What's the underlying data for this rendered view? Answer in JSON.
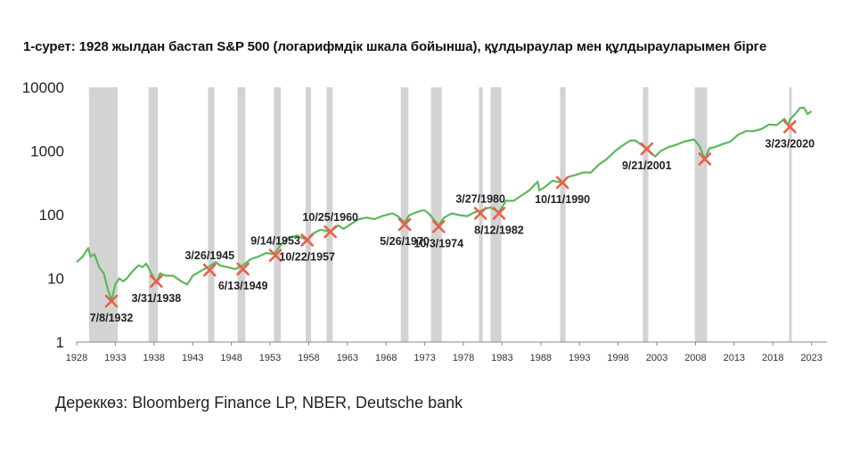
{
  "chart_data": {
    "type": "line",
    "title": "1-сурет: 1928 жылдан бастап S&P 500 (логарифмдік шкала бойынша), құлдыраулар мен құлдырауларымен бірге",
    "source": "Дереккөз: Bloomberg Finance LP, NBER, Deutsche bank",
    "y_scale": "log",
    "ylim": [
      1,
      10000
    ],
    "xlim": [
      1928,
      2025
    ],
    "y_ticks": [
      {
        "value": 1,
        "label": "1"
      },
      {
        "value": 10,
        "label": "10"
      },
      {
        "value": 100,
        "label": "100"
      },
      {
        "value": 1000,
        "label": "1000"
      },
      {
        "value": 10000,
        "label": "10000"
      }
    ],
    "x_ticks": [
      {
        "value": 1928,
        "label": "1928"
      },
      {
        "value": 1933,
        "label": "1933"
      },
      {
        "value": 1938,
        "label": "1938"
      },
      {
        "value": 1943,
        "label": "1943"
      },
      {
        "value": 1948,
        "label": "1948"
      },
      {
        "value": 1953,
        "label": "1953"
      },
      {
        "value": 1958,
        "label": "1958"
      },
      {
        "value": 1963,
        "label": "1963"
      },
      {
        "value": 1968,
        "label": "1968"
      },
      {
        "value": 1973,
        "label": "1973"
      },
      {
        "value": 1978,
        "label": "1978"
      },
      {
        "value": 1983,
        "label": "1983"
      },
      {
        "value": 1988,
        "label": "1988"
      },
      {
        "value": 1993,
        "label": "1993"
      },
      {
        "value": 1998,
        "label": "1998"
      },
      {
        "value": 2003,
        "label": "2003"
      },
      {
        "value": 2008,
        "label": "2008"
      },
      {
        "value": 2013,
        "label": "2013"
      },
      {
        "value": 2018,
        "label": "2018"
      },
      {
        "value": 2023,
        "label": "2023"
      }
    ],
    "line_color": "#5cb85c",
    "recession_color": "#d3d3d3",
    "marker_color": "#e8604a",
    "recessions": [
      [
        1929.6,
        1933.3
      ],
      [
        1937.3,
        1938.5
      ],
      [
        1945.0,
        1945.8
      ],
      [
        1948.8,
        1949.8
      ],
      [
        1953.5,
        1954.4
      ],
      [
        1957.6,
        1958.3
      ],
      [
        1960.3,
        1961.1
      ],
      [
        1969.9,
        1970.9
      ],
      [
        1973.8,
        1975.2
      ],
      [
        1980.0,
        1980.5
      ],
      [
        1981.5,
        1982.9
      ],
      [
        1990.5,
        1991.2
      ],
      [
        2001.2,
        2001.9
      ],
      [
        2007.9,
        2009.5
      ],
      [
        2020.1,
        2020.4
      ]
    ],
    "series": [
      {
        "x": [
          1928.0,
          1928.8,
          1929.5,
          1929.8,
          1930.3,
          1930.9,
          1931.5,
          1932.0,
          1932.5,
          1933.0,
          1933.5,
          1934.0,
          1934.5,
          1935.0,
          1935.5,
          1936.0,
          1936.5,
          1937.0,
          1937.5,
          1938.0,
          1938.3,
          1938.8,
          1939.5,
          1940.5,
          1941.5,
          1942.3,
          1943.0,
          1944.0,
          1945.0,
          1946.0,
          1946.5,
          1947.5,
          1948.5,
          1949.5,
          1950.5,
          1951.5,
          1952.5,
          1953.5,
          1954.5,
          1955.5,
          1956.5,
          1957.8,
          1958.5,
          1959.5,
          1960.8,
          1961.8,
          1962.5,
          1963.5,
          1964.5,
          1965.5,
          1966.5,
          1967.5,
          1968.8,
          1969.5,
          1970.4,
          1971.0,
          1972.0,
          1972.9,
          1973.5,
          1974.8,
          1975.5,
          1976.5,
          1977.5,
          1978.5,
          1979.5,
          1980.2,
          1980.9,
          1981.5,
          1982.6,
          1983.5,
          1984.5,
          1985.5,
          1986.5,
          1987.6,
          1987.8,
          1988.5,
          1989.5,
          1990.8,
          1991.5,
          1992.5,
          1993.5,
          1994.5,
          1995.5,
          1996.5,
          1997.5,
          1998.5,
          1999.5,
          2000.2,
          2000.8,
          2001.7,
          2002.8,
          2003.5,
          2004.5,
          2005.5,
          2006.5,
          2007.8,
          2008.5,
          2009.2,
          2009.8,
          2010.5,
          2011.5,
          2012.5,
          2013.5,
          2014.5,
          2015.5,
          2016.5,
          2017.5,
          2018.5,
          2019.5,
          2020.0,
          2020.2,
          2020.8,
          2021.5,
          2022.0,
          2022.5,
          2023.0
        ],
        "y": [
          18,
          22,
          30,
          22,
          24,
          15,
          12,
          7,
          4.5,
          8,
          10,
          9,
          10,
          12,
          14,
          16,
          15,
          17,
          13,
          10,
          8.5,
          12,
          11,
          11,
          9,
          8,
          11,
          13,
          15,
          18,
          16,
          15,
          14,
          16,
          20,
          22,
          25,
          24,
          35,
          44,
          47,
          40,
          50,
          58,
          54,
          68,
          60,
          72,
          85,
          90,
          85,
          95,
          105,
          95,
          75,
          98,
          110,
          118,
          105,
          68,
          90,
          105,
          98,
          95,
          110,
          115,
          125,
          130,
          110,
          165,
          165,
          200,
          240,
          330,
          240,
          270,
          340,
          320,
          390,
          420,
          460,
          460,
          610,
          740,
          970,
          1200,
          1450,
          1470,
          1300,
          1080,
          820,
          1000,
          1150,
          1250,
          1400,
          1520,
          1200,
          750,
          1100,
          1150,
          1280,
          1400,
          1800,
          2050,
          2050,
          2200,
          2600,
          2550,
          3200,
          2500,
          3100,
          3700,
          4700,
          4800,
          3800,
          4200
        ]
      }
    ],
    "annotations": [
      {
        "x": 1932.5,
        "y": 4.4,
        "label": "7/8/1932",
        "pos": "below"
      },
      {
        "x": 1938.3,
        "y": 9,
        "label": "3/31/1938",
        "pos": "below"
      },
      {
        "x": 1945.2,
        "y": 13.5,
        "label": "3/26/1945",
        "pos": "above"
      },
      {
        "x": 1949.5,
        "y": 14,
        "label": "6/13/1949",
        "pos": "below"
      },
      {
        "x": 1953.7,
        "y": 23,
        "label": "9/14/1953",
        "pos": "above"
      },
      {
        "x": 1957.8,
        "y": 40,
        "label": "10/22/1957",
        "pos": "below"
      },
      {
        "x": 1960.8,
        "y": 54,
        "label": "10/25/1960",
        "pos": "above"
      },
      {
        "x": 1970.4,
        "y": 70,
        "label": "5/26/1970",
        "pos": "below"
      },
      {
        "x": 1974.8,
        "y": 65,
        "label": "10/3/1974",
        "pos": "below"
      },
      {
        "x": 1980.2,
        "y": 105,
        "label": "3/27/1980",
        "pos": "above"
      },
      {
        "x": 1982.6,
        "y": 105,
        "label": "8/12/1982",
        "pos": "below"
      },
      {
        "x": 1990.8,
        "y": 320,
        "label": "10/11/1990",
        "pos": "below"
      },
      {
        "x": 2001.7,
        "y": 1080,
        "label": "9/21/2001",
        "pos": "below"
      },
      {
        "x": 2009.2,
        "y": 750,
        "label": "",
        "pos": "none"
      },
      {
        "x": 2020.2,
        "y": 2400,
        "label": "3/23/2020",
        "pos": "below"
      }
    ]
  }
}
